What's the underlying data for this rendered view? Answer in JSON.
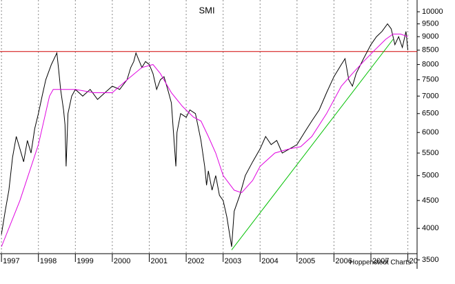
{
  "chart_data": {
    "type": "line",
    "title": "SMI",
    "annotation": "Hoppenstedt Charts",
    "yscale": "log",
    "ylim": [
      3370,
      10510
    ],
    "xlim": [
      1996.96,
      2008.25
    ],
    "yticks": [
      3500,
      4000,
      4500,
      5000,
      5500,
      6000,
      6500,
      7000,
      7500,
      8000,
      8500,
      9000,
      9500,
      10000
    ],
    "xticks": [
      1997,
      1998,
      1999,
      2000,
      2001,
      2002,
      2003,
      2004,
      2005,
      2006,
      2007,
      {
        "value": 2008,
        "label": "20"
      }
    ],
    "grid": true,
    "hline": {
      "value": 8450,
      "color": "#d00000"
    },
    "series": [
      {
        "color": "#000000",
        "x": [
          1997.0,
          1997.1,
          1997.2,
          1997.3,
          1997.4,
          1997.5,
          1997.6,
          1997.7,
          1997.8,
          1997.9,
          1998.0,
          1998.1,
          1998.2,
          1998.35,
          1998.5,
          1998.55,
          1998.6,
          1998.68,
          1998.72,
          1998.75,
          1998.8,
          1998.9,
          1999.0,
          1999.2,
          1999.4,
          1999.6,
          1999.8,
          2000.0,
          2000.2,
          2000.4,
          2000.5,
          2000.58,
          2000.64,
          2000.8,
          2000.9,
          2001.0,
          2001.1,
          2001.2,
          2001.3,
          2001.4,
          2001.5,
          2001.6,
          2001.72,
          2001.75,
          2001.85,
          2002.0,
          2002.1,
          2002.25,
          2002.4,
          2002.5,
          2002.55,
          2002.6,
          2002.7,
          2002.8,
          2002.9,
          2003.0,
          2003.1,
          2003.23,
          2003.3,
          2003.45,
          2003.6,
          2003.8,
          2004.0,
          2004.15,
          2004.3,
          2004.45,
          2004.6,
          2004.8,
          2005.0,
          2005.2,
          2005.4,
          2005.6,
          2005.8,
          2006.0,
          2006.2,
          2006.3,
          2006.4,
          2006.5,
          2006.6,
          2006.8,
          2007.0,
          2007.15,
          2007.3,
          2007.45,
          2007.55,
          2007.65,
          2007.75,
          2007.85,
          2007.95,
          2008.0
        ],
        "values": [
          3900,
          4300,
          4700,
          5400,
          5900,
          5600,
          5300,
          5800,
          5500,
          6100,
          6500,
          7000,
          7500,
          8000,
          8400,
          7800,
          7200,
          6600,
          6200,
          5200,
          6500,
          7000,
          7200,
          7000,
          7200,
          6900,
          7100,
          7300,
          7200,
          7500,
          7900,
          8100,
          8400,
          7900,
          8100,
          8000,
          7700,
          7200,
          7500,
          7600,
          7200,
          6800,
          5200,
          6000,
          6500,
          6400,
          6600,
          6500,
          5800,
          5200,
          4800,
          5100,
          4700,
          5000,
          4600,
          4500,
          4200,
          3700,
          4300,
          4600,
          5000,
          5300,
          5600,
          5900,
          5700,
          5800,
          5500,
          5600,
          5700,
          6000,
          6300,
          6600,
          7100,
          7600,
          8000,
          8200,
          7500,
          7300,
          7700,
          8200,
          8700,
          9000,
          9200,
          9500,
          9300,
          8700,
          9000,
          8600,
          9200,
          8500
        ]
      },
      {
        "color": "#e000e0",
        "x": [
          1997.0,
          1997.5,
          1998.0,
          1998.3,
          1998.4,
          1999.0,
          1999.5,
          2000.0,
          2000.4,
          2000.8,
          2001.1,
          2001.3,
          2001.6,
          2001.9,
          2002.2,
          2002.4,
          2002.6,
          2002.8,
          2003.0,
          2003.3,
          2003.5,
          2003.8,
          2004.0,
          2004.4,
          2004.8,
          2005.1,
          2005.4,
          2005.8,
          2006.2,
          2006.5,
          2006.8,
          2007.1,
          2007.4,
          2007.6,
          2007.8,
          2008.0
        ],
        "values": [
          3700,
          4500,
          5700,
          7000,
          7200,
          7200,
          7100,
          7100,
          7500,
          7900,
          8000,
          7700,
          7100,
          6700,
          6400,
          6300,
          5900,
          5500,
          5000,
          4700,
          4650,
          4900,
          5200,
          5500,
          5600,
          5650,
          5900,
          6500,
          7300,
          7700,
          8100,
          8500,
          8900,
          9100,
          9100,
          9000
        ]
      },
      {
        "color": "#00c000",
        "x": [
          2003.23,
          2007.6
        ],
        "values": [
          3650,
          8900
        ]
      }
    ]
  }
}
